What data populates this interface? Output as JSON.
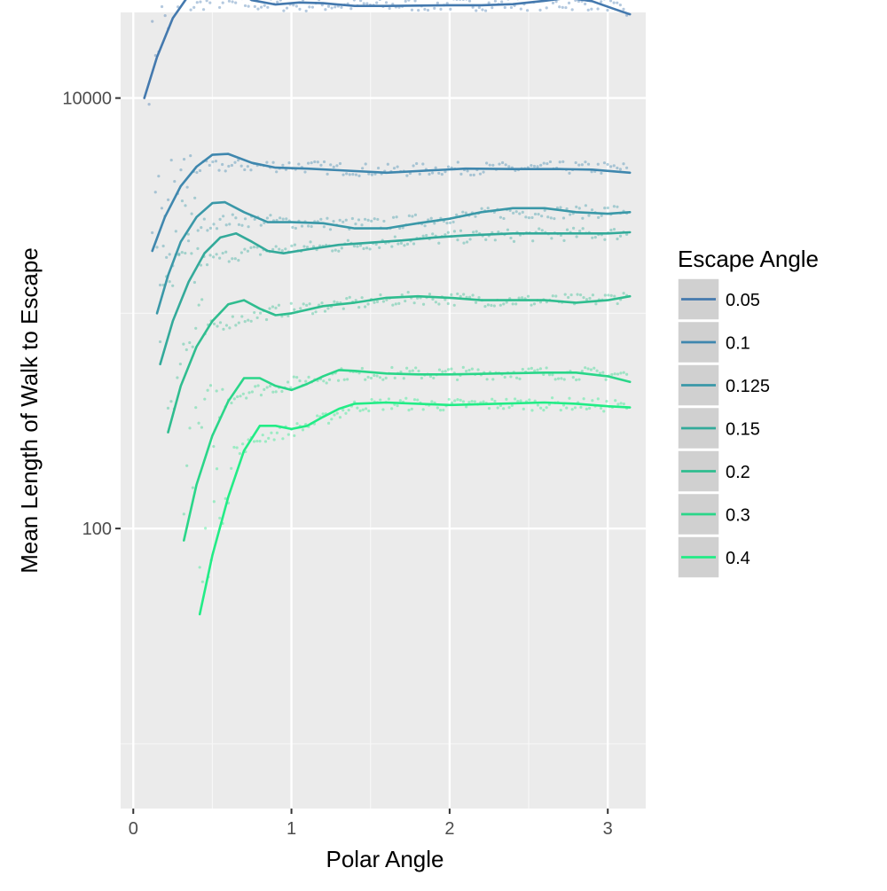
{
  "chart_data": {
    "type": "line",
    "xlabel": "Polar Angle",
    "ylabel": "Mean Length of Walk to Escape",
    "y_scale": "log10",
    "xlim": [
      -0.08,
      3.24
    ],
    "ylim": [
      5,
      25000
    ],
    "x_ticks": [
      {
        "value": 0,
        "label": "0"
      },
      {
        "value": 1,
        "label": "1"
      },
      {
        "value": 2,
        "label": "2"
      },
      {
        "value": 3,
        "label": "3"
      }
    ],
    "x_minor_ticks": [
      0.5,
      1.5,
      2.5
    ],
    "y_ticks": [
      {
        "value": 100,
        "label": "100"
      },
      {
        "value": 10000,
        "label": "10000"
      }
    ],
    "y_minor_ticks": [
      10,
      1000
    ],
    "grid": true,
    "legend": {
      "title": "Escape Angle",
      "position": "right"
    },
    "series": [
      {
        "name": "0.05",
        "color": "#4479AE",
        "smooth": [
          [
            0.07,
            10000
          ],
          [
            0.15,
            15500
          ],
          [
            0.25,
            23500
          ],
          [
            0.35,
            30000
          ],
          [
            0.45,
            33800
          ],
          [
            0.55,
            34000
          ],
          [
            0.65,
            31500
          ],
          [
            0.75,
            28500
          ],
          [
            0.9,
            27200
          ],
          [
            1.05,
            27800
          ],
          [
            1.2,
            27600
          ],
          [
            1.4,
            26800
          ],
          [
            1.6,
            26800
          ],
          [
            1.8,
            26900
          ],
          [
            2.0,
            27000
          ],
          [
            2.2,
            27000
          ],
          [
            2.4,
            27300
          ],
          [
            2.6,
            28300
          ],
          [
            2.75,
            29200
          ],
          [
            2.9,
            28200
          ],
          [
            3.05,
            25800
          ],
          [
            3.14,
            24500
          ]
        ],
        "points": [
          [
            0.1,
            14000
          ],
          [
            0.15,
            20000
          ],
          [
            0.2,
            23500
          ],
          [
            0.25,
            25000
          ],
          [
            0.3,
            26000
          ],
          [
            0.4,
            27000
          ],
          [
            0.5,
            28000
          ],
          [
            0.6,
            27500
          ],
          [
            0.8,
            27200
          ],
          [
            1.0,
            27000
          ],
          [
            1.3,
            27000
          ],
          [
            1.6,
            27000
          ],
          [
            2.0,
            27200
          ],
          [
            2.3,
            27300
          ],
          [
            2.6,
            27400
          ],
          [
            2.8,
            27400
          ],
          [
            3.0,
            27300
          ],
          [
            3.12,
            24500
          ]
        ]
      },
      {
        "name": "0.1",
        "color": "#3F87AE",
        "smooth": [
          [
            0.12,
            1950
          ],
          [
            0.2,
            2800
          ],
          [
            0.3,
            3900
          ],
          [
            0.4,
            4800
          ],
          [
            0.5,
            5450
          ],
          [
            0.6,
            5500
          ],
          [
            0.75,
            5000
          ],
          [
            0.9,
            4750
          ],
          [
            1.1,
            4700
          ],
          [
            1.3,
            4620
          ],
          [
            1.6,
            4500
          ],
          [
            1.9,
            4620
          ],
          [
            2.1,
            4700
          ],
          [
            2.4,
            4680
          ],
          [
            2.7,
            4680
          ],
          [
            2.9,
            4650
          ],
          [
            3.14,
            4500
          ]
        ],
        "points": [
          [
            0.12,
            2900
          ],
          [
            0.2,
            3500
          ],
          [
            0.3,
            4200
          ],
          [
            0.4,
            4700
          ],
          [
            0.5,
            4800
          ],
          [
            0.7,
            4850
          ],
          [
            1.0,
            4850
          ],
          [
            1.3,
            4700
          ],
          [
            1.6,
            4600
          ],
          [
            2.0,
            4700
          ],
          [
            2.4,
            4700
          ],
          [
            2.8,
            4750
          ],
          [
            3.12,
            4700
          ]
        ]
      },
      {
        "name": "0.125",
        "color": "#3A98A8",
        "smooth": [
          [
            0.15,
            1000
          ],
          [
            0.22,
            1500
          ],
          [
            0.3,
            2150
          ],
          [
            0.4,
            2800
          ],
          [
            0.5,
            3250
          ],
          [
            0.58,
            3280
          ],
          [
            0.7,
            2950
          ],
          [
            0.85,
            2650
          ],
          [
            1.0,
            2650
          ],
          [
            1.2,
            2620
          ],
          [
            1.4,
            2480
          ],
          [
            1.6,
            2480
          ],
          [
            1.8,
            2620
          ],
          [
            2.0,
            2750
          ],
          [
            2.2,
            2950
          ],
          [
            2.4,
            3080
          ],
          [
            2.6,
            3080
          ],
          [
            2.8,
            2950
          ],
          [
            3.0,
            2900
          ],
          [
            3.14,
            2950
          ]
        ],
        "points": [
          [
            0.15,
            1500
          ],
          [
            0.22,
            2000
          ],
          [
            0.3,
            2400
          ],
          [
            0.4,
            2550
          ],
          [
            0.6,
            2700
          ],
          [
            0.8,
            2700
          ],
          [
            1.0,
            2650
          ],
          [
            1.3,
            2600
          ],
          [
            1.6,
            2600
          ],
          [
            2.0,
            2800
          ],
          [
            2.4,
            2950
          ],
          [
            2.8,
            2950
          ],
          [
            3.12,
            3000
          ]
        ]
      },
      {
        "name": "0.15",
        "color": "#33AA9A",
        "smooth": [
          [
            0.17,
            580
          ],
          [
            0.25,
            920
          ],
          [
            0.35,
            1400
          ],
          [
            0.45,
            1900
          ],
          [
            0.55,
            2250
          ],
          [
            0.65,
            2350
          ],
          [
            0.75,
            2150
          ],
          [
            0.85,
            1950
          ],
          [
            0.95,
            1900
          ],
          [
            1.1,
            1980
          ],
          [
            1.3,
            2080
          ],
          [
            1.5,
            2130
          ],
          [
            1.7,
            2180
          ],
          [
            1.9,
            2250
          ],
          [
            2.1,
            2300
          ],
          [
            2.4,
            2350
          ],
          [
            2.7,
            2350
          ],
          [
            3.0,
            2350
          ],
          [
            3.14,
            2380
          ]
        ],
        "points": [
          [
            0.17,
            900
          ],
          [
            0.25,
            1350
          ],
          [
            0.35,
            1600
          ],
          [
            0.45,
            1750
          ],
          [
            0.6,
            1850
          ],
          [
            0.8,
            1950
          ],
          [
            1.0,
            2000
          ],
          [
            1.3,
            2050
          ],
          [
            1.6,
            2150
          ],
          [
            2.0,
            2250
          ],
          [
            2.4,
            2300
          ],
          [
            2.8,
            2330
          ],
          [
            3.12,
            2350
          ]
        ]
      },
      {
        "name": "0.2",
        "color": "#2FBD8F",
        "smooth": [
          [
            0.22,
            280
          ],
          [
            0.3,
            460
          ],
          [
            0.4,
            700
          ],
          [
            0.5,
            920
          ],
          [
            0.6,
            1100
          ],
          [
            0.7,
            1150
          ],
          [
            0.8,
            1050
          ],
          [
            0.9,
            980
          ],
          [
            1.0,
            1000
          ],
          [
            1.2,
            1080
          ],
          [
            1.4,
            1120
          ],
          [
            1.6,
            1180
          ],
          [
            1.8,
            1200
          ],
          [
            2.0,
            1180
          ],
          [
            2.2,
            1150
          ],
          [
            2.4,
            1150
          ],
          [
            2.6,
            1150
          ],
          [
            2.8,
            1120
          ],
          [
            3.0,
            1150
          ],
          [
            3.14,
            1200
          ]
        ],
        "points": [
          [
            0.22,
            420
          ],
          [
            0.3,
            620
          ],
          [
            0.4,
            780
          ],
          [
            0.5,
            870
          ],
          [
            0.7,
            950
          ],
          [
            0.9,
            1020
          ],
          [
            1.2,
            1080
          ],
          [
            1.5,
            1130
          ],
          [
            1.8,
            1180
          ],
          [
            2.1,
            1160
          ],
          [
            2.5,
            1140
          ],
          [
            2.9,
            1150
          ],
          [
            3.12,
            1200
          ]
        ]
      },
      {
        "name": "0.3",
        "color": "#2AD689",
        "smooth": [
          [
            0.32,
            88
          ],
          [
            0.4,
            160
          ],
          [
            0.5,
            270
          ],
          [
            0.6,
            390
          ],
          [
            0.7,
            500
          ],
          [
            0.8,
            500
          ],
          [
            0.9,
            460
          ],
          [
            1.0,
            440
          ],
          [
            1.1,
            470
          ],
          [
            1.2,
            510
          ],
          [
            1.3,
            545
          ],
          [
            1.4,
            540
          ],
          [
            1.6,
            525
          ],
          [
            1.8,
            520
          ],
          [
            2.0,
            520
          ],
          [
            2.3,
            525
          ],
          [
            2.6,
            530
          ],
          [
            2.8,
            530
          ],
          [
            3.0,
            510
          ],
          [
            3.14,
            480
          ]
        ],
        "points": [
          [
            0.32,
            170
          ],
          [
            0.4,
            260
          ],
          [
            0.5,
            340
          ],
          [
            0.6,
            400
          ],
          [
            0.7,
            430
          ],
          [
            0.9,
            455
          ],
          [
            1.1,
            490
          ],
          [
            1.3,
            520
          ],
          [
            1.6,
            525
          ],
          [
            2.0,
            525
          ],
          [
            2.4,
            530
          ],
          [
            2.8,
            525
          ],
          [
            3.12,
            520
          ]
        ]
      },
      {
        "name": "0.4",
        "color": "#22EC86",
        "smooth": [
          [
            0.42,
            40
          ],
          [
            0.5,
            75
          ],
          [
            0.6,
            140
          ],
          [
            0.7,
            230
          ],
          [
            0.8,
            300
          ],
          [
            0.9,
            300
          ],
          [
            1.0,
            290
          ],
          [
            1.1,
            300
          ],
          [
            1.2,
            330
          ],
          [
            1.3,
            360
          ],
          [
            1.4,
            380
          ],
          [
            1.6,
            385
          ],
          [
            1.8,
            380
          ],
          [
            2.0,
            375
          ],
          [
            2.3,
            380
          ],
          [
            2.6,
            385
          ],
          [
            2.8,
            380
          ],
          [
            3.0,
            370
          ],
          [
            3.14,
            365
          ]
        ],
        "points": [
          [
            0.42,
            55
          ],
          [
            0.5,
            110
          ],
          [
            0.6,
            190
          ],
          [
            0.7,
            240
          ],
          [
            0.8,
            265
          ],
          [
            1.0,
            285
          ],
          [
            1.2,
            320
          ],
          [
            1.4,
            370
          ],
          [
            1.6,
            380
          ],
          [
            2.0,
            375
          ],
          [
            2.4,
            380
          ],
          [
            2.8,
            378
          ],
          [
            3.12,
            370
          ]
        ]
      }
    ]
  }
}
